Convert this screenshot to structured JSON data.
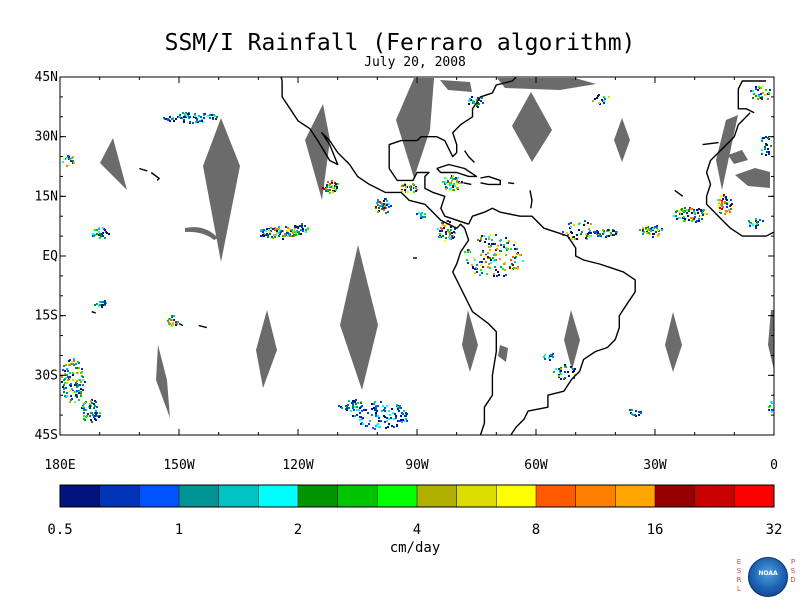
{
  "header": {
    "title": "SSM/I Rainfall (Ferraro algorithm)",
    "date": "July 20, 2008"
  },
  "map": {
    "lon_range": [
      -180,
      0
    ],
    "lat_range": [
      -45,
      45
    ],
    "lat_ticks": [
      {
        "value": 45,
        "label": "45N"
      },
      {
        "value": 30,
        "label": "30N"
      },
      {
        "value": 15,
        "label": "15N"
      },
      {
        "value": 0,
        "label": "EQ"
      },
      {
        "value": -15,
        "label": "15S"
      },
      {
        "value": -30,
        "label": "30S"
      },
      {
        "value": -45,
        "label": "45S"
      }
    ],
    "lon_ticks": [
      {
        "value": -180,
        "label": "180E"
      },
      {
        "value": -150,
        "label": "150W"
      },
      {
        "value": -120,
        "label": "120W"
      },
      {
        "value": -90,
        "label": "90W"
      },
      {
        "value": -60,
        "label": "60W"
      },
      {
        "value": -30,
        "label": "30W"
      },
      {
        "value": 0,
        "label": "0"
      }
    ],
    "missing_color": "#6b6b6b",
    "coast_color": "#000000"
  },
  "colorbar": {
    "unit": "cm/day",
    "colors": [
      "#00137e",
      "#0033b8",
      "#0052ff",
      "#009494",
      "#00c4c4",
      "#00ffff",
      "#009400",
      "#00c400",
      "#00ff00",
      "#b0b000",
      "#dcdc00",
      "#ffff00",
      "#ff5a00",
      "#ff8000",
      "#ffa500",
      "#960000",
      "#c80000",
      "#ff0000"
    ],
    "ticks": [
      "0.5",
      "1",
      "2",
      "4",
      "8",
      "16",
      "32"
    ]
  },
  "logo": {
    "left_letters": [
      "E",
      "S",
      "R",
      "L"
    ],
    "right_letters": [
      "P",
      "S",
      "D"
    ],
    "globe_text": "NOAA"
  }
}
